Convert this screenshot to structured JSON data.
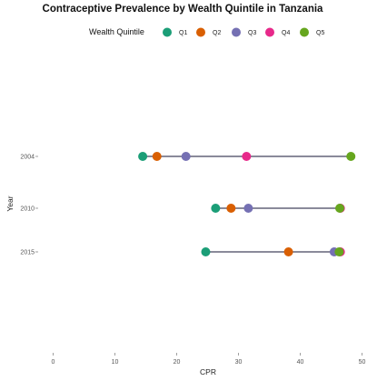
{
  "chart_data": {
    "type": "dumbbell",
    "title": "Contraceptive Prevalence by Wealth Quintile in Tanzania",
    "xlabel": "CPR",
    "ylabel": "Year",
    "xlim": [
      -5,
      51
    ],
    "xticks": [
      0,
      10,
      20,
      30,
      40,
      50
    ],
    "legend": {
      "title": "Wealth Quintile",
      "position": "top"
    },
    "categories": [
      "2004",
      "2010",
      "2015"
    ],
    "series": [
      {
        "name": "Q1",
        "color": "#1b9e77",
        "values": [
          14.5,
          26.3,
          24.7
        ]
      },
      {
        "name": "Q2",
        "color": "#d95f02",
        "values": [
          16.8,
          28.8,
          38.1
        ]
      },
      {
        "name": "Q3",
        "color": "#7570b3",
        "values": [
          21.5,
          31.6,
          45.5
        ]
      },
      {
        "name": "Q4",
        "color": "#e7298a",
        "values": [
          31.3,
          46.5,
          46.5
        ]
      },
      {
        "name": "Q5",
        "color": "#66a61e",
        "values": [
          48.2,
          46.4,
          46.3
        ]
      }
    ],
    "line_color": "#8a8a9a",
    "grid": false
  }
}
